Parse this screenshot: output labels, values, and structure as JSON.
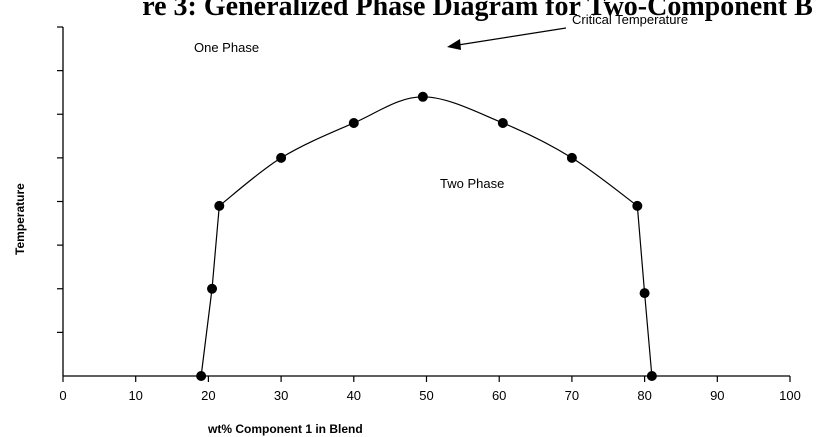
{
  "chart_data": {
    "type": "scatter",
    "title": "re 3: Generalized Phase Diagram for Two-Component B",
    "xlabel": "wt% Component 1 in Blend",
    "ylabel": "Temperature",
    "xlim": [
      0,
      100
    ],
    "ylim": [
      0,
      8
    ],
    "x_ticks": [
      0,
      10,
      20,
      30,
      40,
      50,
      60,
      70,
      80,
      90,
      100
    ],
    "y_ticks": [
      0,
      1,
      2,
      3,
      4,
      5,
      6,
      7,
      8
    ],
    "grid": false,
    "legend": "none",
    "line_color": "#000000",
    "marker_color": "#000000",
    "series": [
      {
        "points": [
          {
            "x": 19,
            "y": 0
          },
          {
            "x": 20.5,
            "y": 2
          },
          {
            "x": 21.5,
            "y": 3.9
          },
          {
            "x": 30,
            "y": 5
          },
          {
            "x": 40,
            "y": 5.8
          },
          {
            "x": 49.5,
            "y": 6.4
          },
          {
            "x": 60.5,
            "y": 5.8
          },
          {
            "x": 70,
            "y": 5
          },
          {
            "x": 79,
            "y": 3.9
          },
          {
            "x": 80,
            "y": 1.9
          },
          {
            "x": 81,
            "y": 0
          }
        ]
      }
    ],
    "annotations": [
      {
        "text": "Critical Temperature",
        "arrow_to": {
          "x": 49.5,
          "y": 6.4
        }
      },
      {
        "text": "One Phase"
      },
      {
        "text": "Two Phase"
      }
    ]
  }
}
